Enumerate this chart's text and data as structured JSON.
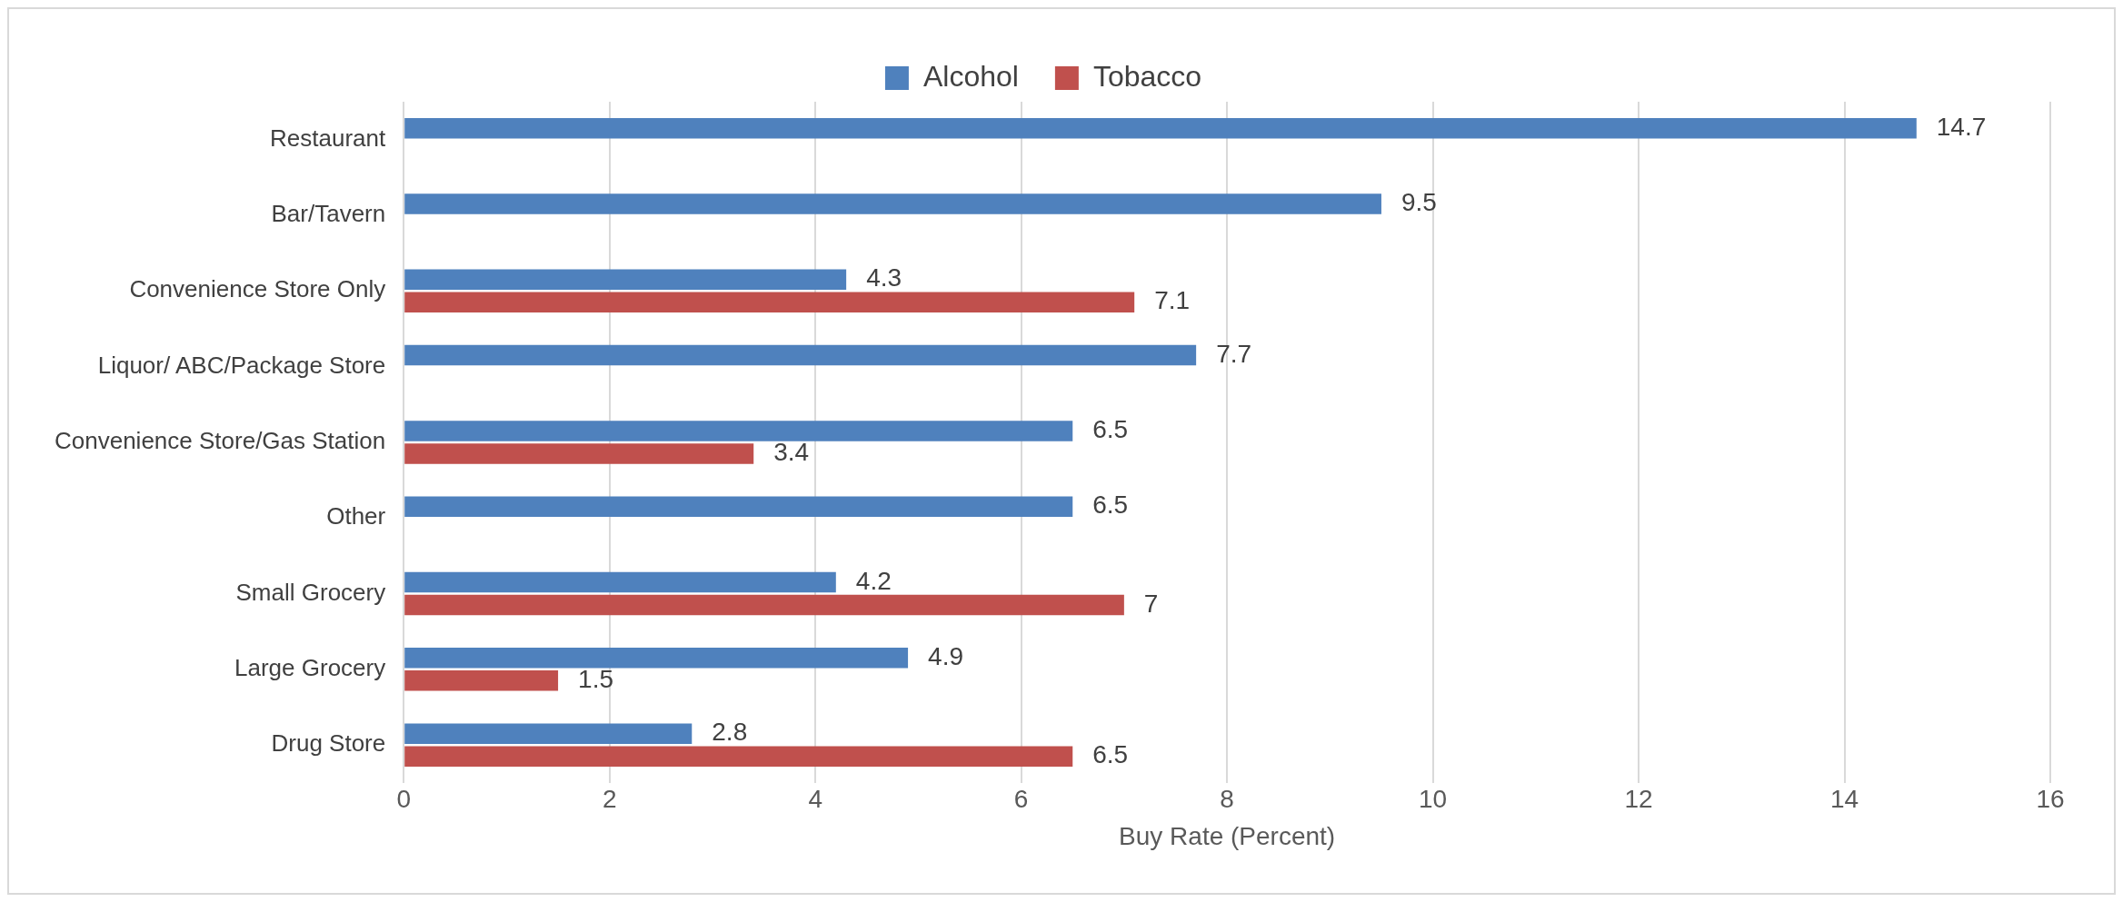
{
  "chart_data": {
    "type": "bar",
    "orientation": "horizontal",
    "xlabel": "Buy Rate (Percent)",
    "categories": [
      "Restaurant",
      "Bar/Tavern",
      "Convenience Store Only",
      "Liquor/ ABC/Package Store",
      "Convenience Store/Gas Station",
      "Other",
      "Small Grocery",
      "Large Grocery",
      "Drug Store"
    ],
    "series": [
      {
        "name": "Alcohol",
        "color": "#4f81bd",
        "values": [
          14.7,
          9.5,
          4.3,
          7.7,
          6.5,
          6.5,
          4.2,
          4.9,
          2.8
        ]
      },
      {
        "name": "Tobacco",
        "color": "#c0504d",
        "values": [
          null,
          null,
          7.1,
          null,
          3.4,
          null,
          7,
          1.5,
          6.5
        ]
      }
    ],
    "xlim": [
      0,
      16
    ],
    "xticks": [
      0,
      2,
      4,
      6,
      8,
      10,
      12,
      14,
      16
    ],
    "grid": "x",
    "legend": "top",
    "data_labels": true
  }
}
